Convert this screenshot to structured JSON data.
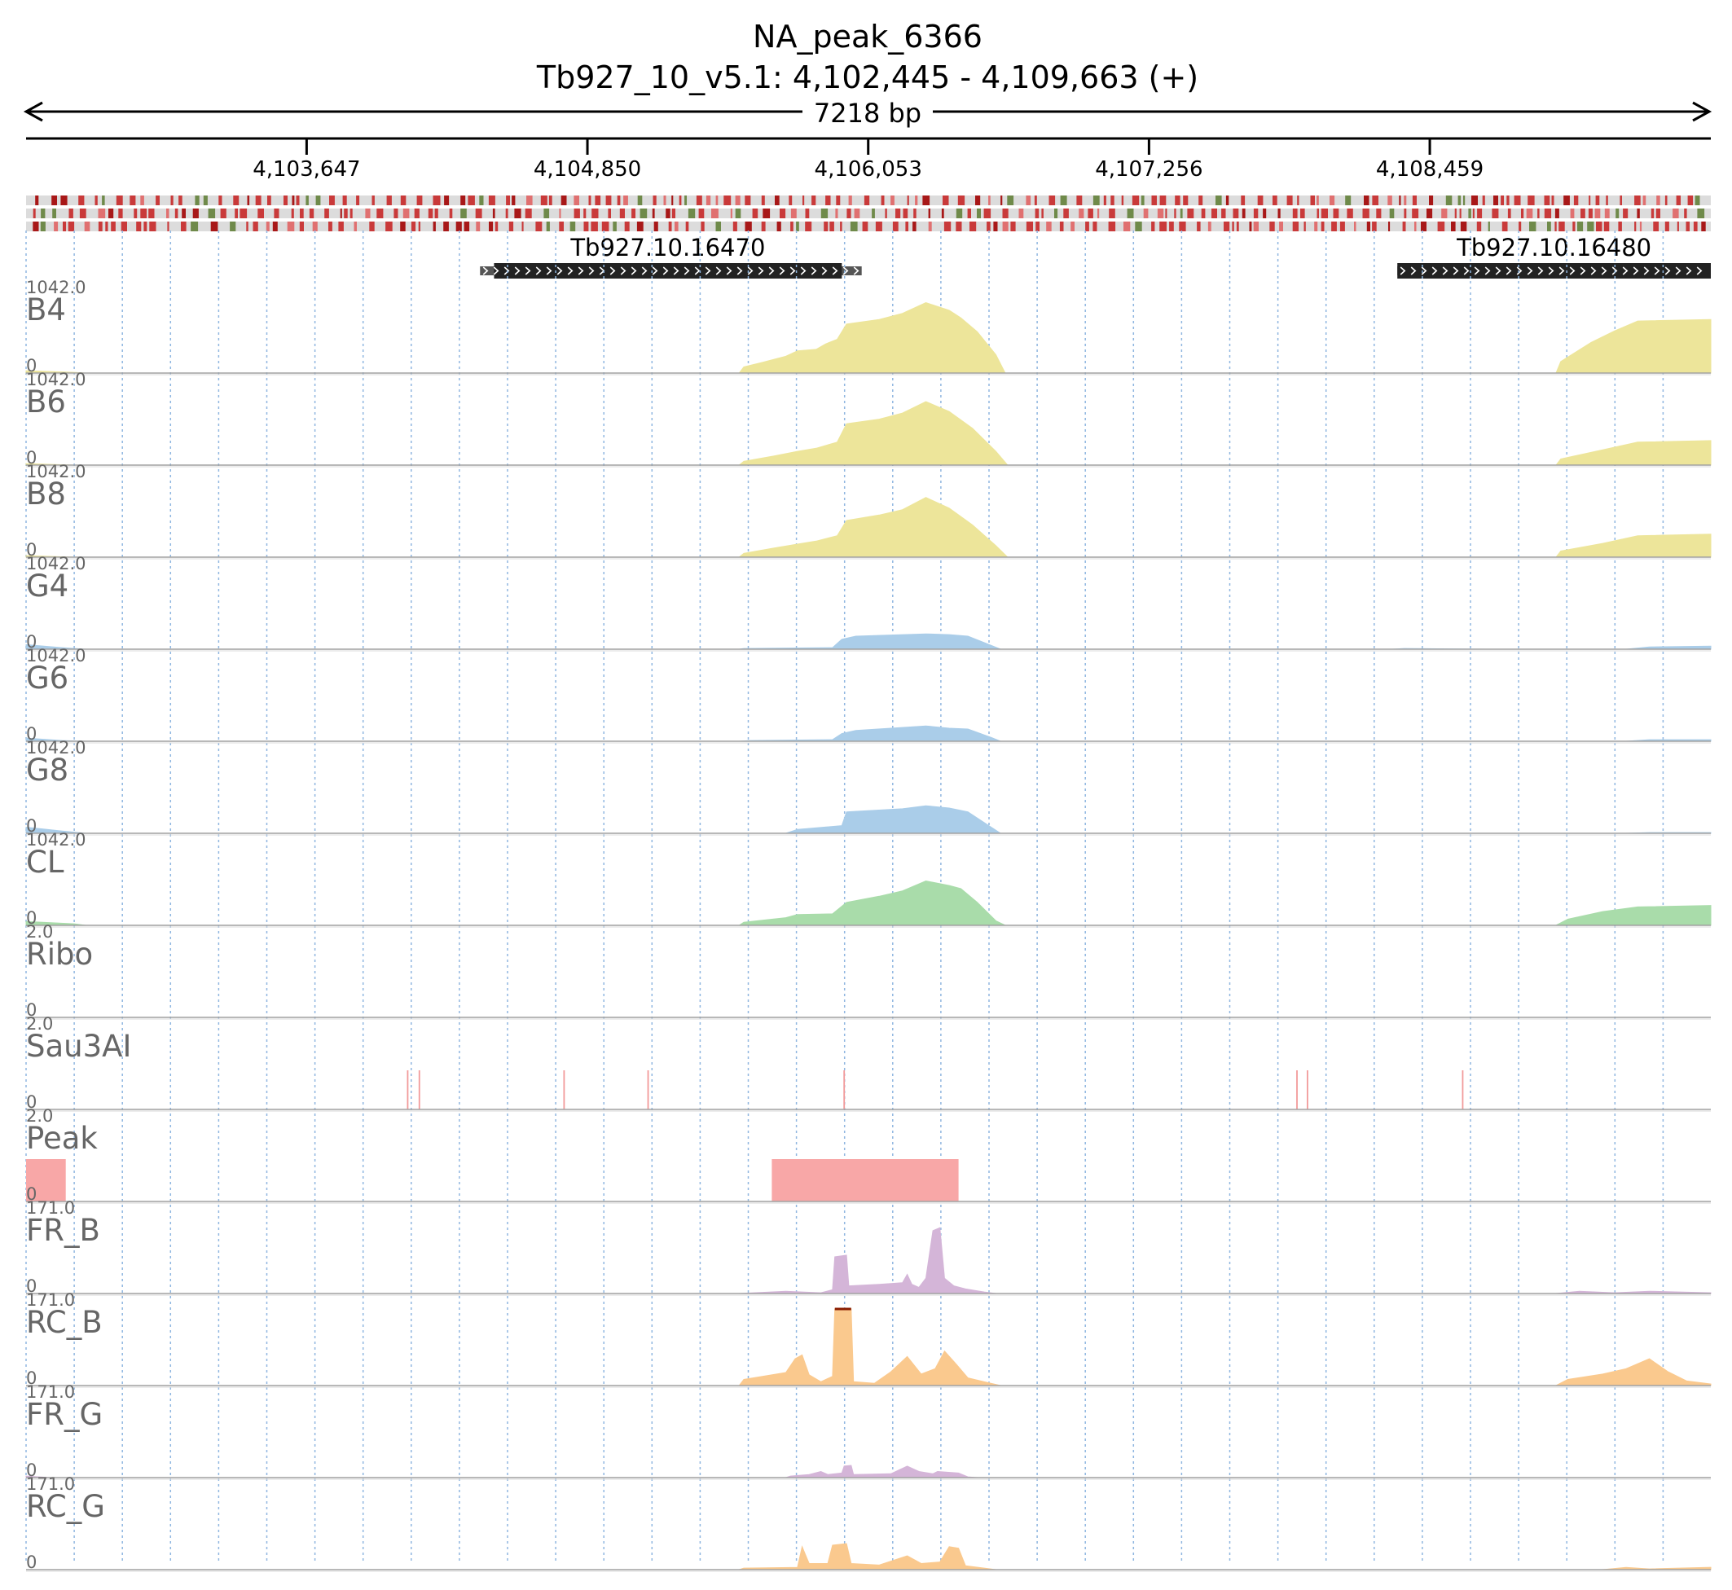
{
  "header": {
    "title": "NA_peak_6366",
    "locus": "Tb927_10_v5.1: 4,102,445 - 4,109,663 (+)",
    "span": "7218 bp"
  },
  "region": {
    "start": 4102445,
    "end": 4109663
  },
  "ruler": {
    "ticks": [
      {
        "pos": 4103647,
        "label": "4,103,647"
      },
      {
        "pos": 4104850,
        "label": "4,104,850"
      },
      {
        "pos": 4106053,
        "label": "4,106,053"
      },
      {
        "pos": 4107256,
        "label": "4,107,256"
      },
      {
        "pos": 4108459,
        "label": "4,108,459"
      }
    ]
  },
  "genes": [
    {
      "name": "Tb927.10.16470",
      "start": 4104450,
      "end": 4105940,
      "utr_start": 4104390,
      "utr_end": 4106025,
      "strand": "+"
    },
    {
      "name": "Tb927.10.16480",
      "start": 4108320,
      "end": 4109663,
      "utr_start": 4108320,
      "utr_end": 4109663,
      "strand": "+"
    }
  ],
  "colors": {
    "yellow": "#ede59a",
    "blue": "#aacde9",
    "green": "#a9dcaa",
    "pink": "#f8a7a7",
    "purple": "#d4b5d8",
    "orange": "#fac98e",
    "red_line": "#f29a9a",
    "grid": "#8fb6e0",
    "label": "#666666"
  },
  "tracks": [
    {
      "name": "B4",
      "max": "1042.0",
      "min": "0",
      "type": "coverage",
      "color_key": "yellow",
      "profile": [
        [
          4102445,
          0.03
        ],
        [
          4102650,
          0.01
        ],
        [
          4102700,
          0
        ],
        [
          4105500,
          0
        ],
        [
          4105520,
          0.08
        ],
        [
          4105600,
          0.14
        ],
        [
          4105700,
          0.22
        ],
        [
          4105750,
          0.29
        ],
        [
          4105830,
          0.31
        ],
        [
          4105870,
          0.38
        ],
        [
          4105920,
          0.44
        ],
        [
          4105960,
          0.64
        ],
        [
          4106100,
          0.7
        ],
        [
          4106200,
          0.78
        ],
        [
          4106300,
          0.92
        ],
        [
          4106400,
          0.82
        ],
        [
          4106450,
          0.72
        ],
        [
          4106520,
          0.54
        ],
        [
          4106600,
          0.24
        ],
        [
          4106640,
          0
        ],
        [
          4109000,
          0
        ],
        [
          4109020,
          0.15
        ],
        [
          4109150,
          0.4
        ],
        [
          4109250,
          0.55
        ],
        [
          4109350,
          0.68
        ],
        [
          4109663,
          0.7
        ]
      ]
    },
    {
      "name": "B6",
      "max": "1042.0",
      "min": "0",
      "type": "coverage",
      "color_key": "yellow",
      "profile": [
        [
          4102445,
          0.02
        ],
        [
          4102650,
          0
        ],
        [
          4105500,
          0
        ],
        [
          4105520,
          0.05
        ],
        [
          4105650,
          0.12
        ],
        [
          4105750,
          0.18
        ],
        [
          4105830,
          0.22
        ],
        [
          4105920,
          0.3
        ],
        [
          4105960,
          0.54
        ],
        [
          4106100,
          0.6
        ],
        [
          4106200,
          0.68
        ],
        [
          4106300,
          0.83
        ],
        [
          4106400,
          0.7
        ],
        [
          4106500,
          0.48
        ],
        [
          4106600,
          0.18
        ],
        [
          4106650,
          0
        ],
        [
          4109000,
          0
        ],
        [
          4109020,
          0.08
        ],
        [
          4109200,
          0.2
        ],
        [
          4109350,
          0.3
        ],
        [
          4109663,
          0.32
        ]
      ]
    },
    {
      "name": "B8",
      "max": "1042.0",
      "min": "0",
      "type": "coverage",
      "color_key": "yellow",
      "profile": [
        [
          4102445,
          0.02
        ],
        [
          4102650,
          0
        ],
        [
          4105500,
          0
        ],
        [
          4105520,
          0.05
        ],
        [
          4105650,
          0.12
        ],
        [
          4105750,
          0.17
        ],
        [
          4105830,
          0.21
        ],
        [
          4105920,
          0.28
        ],
        [
          4105960,
          0.48
        ],
        [
          4106100,
          0.55
        ],
        [
          4106200,
          0.62
        ],
        [
          4106300,
          0.78
        ],
        [
          4106400,
          0.64
        ],
        [
          4106500,
          0.42
        ],
        [
          4106600,
          0.15
        ],
        [
          4106650,
          0
        ],
        [
          4109000,
          0
        ],
        [
          4109020,
          0.08
        ],
        [
          4109200,
          0.18
        ],
        [
          4109350,
          0.28
        ],
        [
          4109663,
          0.3
        ]
      ]
    },
    {
      "name": "G4",
      "max": "1042.0",
      "min": "0",
      "type": "coverage",
      "color_key": "blue",
      "profile": [
        [
          4102445,
          0.06
        ],
        [
          4102600,
          0.02
        ],
        [
          4102700,
          0
        ],
        [
          4105500,
          0
        ],
        [
          4105520,
          0.01
        ],
        [
          4105900,
          0.02
        ],
        [
          4105940,
          0.13
        ],
        [
          4106000,
          0.17
        ],
        [
          4106300,
          0.2
        ],
        [
          4106400,
          0.19
        ],
        [
          4106480,
          0.17
        ],
        [
          4106580,
          0.05
        ],
        [
          4106620,
          0
        ],
        [
          4108300,
          0
        ],
        [
          4108350,
          0.01
        ],
        [
          4108700,
          0
        ],
        [
          4109300,
          0
        ],
        [
          4109400,
          0.03
        ],
        [
          4109663,
          0.04
        ]
      ]
    },
    {
      "name": "G6",
      "max": "1042.0",
      "min": "0",
      "type": "coverage",
      "color_key": "blue",
      "profile": [
        [
          4102445,
          0.04
        ],
        [
          4102600,
          0.01
        ],
        [
          4102700,
          0
        ],
        [
          4105500,
          0
        ],
        [
          4105550,
          0.01
        ],
        [
          4105900,
          0.02
        ],
        [
          4105940,
          0.1
        ],
        [
          4106000,
          0.14
        ],
        [
          4106300,
          0.2
        ],
        [
          4106400,
          0.17
        ],
        [
          4106480,
          0.16
        ],
        [
          4106580,
          0.05
        ],
        [
          4106620,
          0
        ],
        [
          4109300,
          0
        ],
        [
          4109400,
          0.02
        ],
        [
          4109663,
          0.02
        ]
      ]
    },
    {
      "name": "G8",
      "max": "1042.0",
      "min": "0",
      "type": "coverage",
      "color_key": "blue",
      "profile": [
        [
          4102445,
          0.08
        ],
        [
          4102600,
          0.03
        ],
        [
          4102700,
          0
        ],
        [
          4105700,
          0
        ],
        [
          4105750,
          0.05
        ],
        [
          4105940,
          0.1
        ],
        [
          4105960,
          0.28
        ],
        [
          4106200,
          0.32
        ],
        [
          4106300,
          0.36
        ],
        [
          4106400,
          0.33
        ],
        [
          4106480,
          0.28
        ],
        [
          4106580,
          0.08
        ],
        [
          4106620,
          0
        ],
        [
          4109300,
          0
        ],
        [
          4109400,
          0.01
        ],
        [
          4109663,
          0.01
        ]
      ]
    },
    {
      "name": "CL",
      "max": "1042.0",
      "min": "0",
      "type": "coverage",
      "color_key": "green",
      "profile": [
        [
          4102445,
          0.05
        ],
        [
          4102650,
          0.02
        ],
        [
          4102700,
          0
        ],
        [
          4105500,
          0
        ],
        [
          4105520,
          0.04
        ],
        [
          4105700,
          0.1
        ],
        [
          4105750,
          0.14
        ],
        [
          4105900,
          0.15
        ],
        [
          4105960,
          0.3
        ],
        [
          4106100,
          0.38
        ],
        [
          4106200,
          0.45
        ],
        [
          4106300,
          0.58
        ],
        [
          4106400,
          0.52
        ],
        [
          4106450,
          0.48
        ],
        [
          4106520,
          0.3
        ],
        [
          4106600,
          0.06
        ],
        [
          4106640,
          0
        ],
        [
          4109000,
          0
        ],
        [
          4109050,
          0.08
        ],
        [
          4109200,
          0.18
        ],
        [
          4109350,
          0.24
        ],
        [
          4109663,
          0.26
        ]
      ]
    },
    {
      "name": "Ribo",
      "max": "2.0",
      "min": "0",
      "type": "empty",
      "color_key": "grid"
    },
    {
      "name": "Sau3AI",
      "max": "2.0",
      "min": "0",
      "type": "sites",
      "color_key": "red_line",
      "sites": [
        4104080,
        4104130,
        4104750,
        4105110,
        4105950,
        4107890,
        4107935,
        4108600
      ]
    },
    {
      "name": "Peak",
      "max": "2.0",
      "min": "0",
      "type": "blocks",
      "color_key": "pink",
      "blocks": [
        [
          4102445,
          4102615
        ],
        [
          4105640,
          4106440
        ]
      ]
    },
    {
      "name": "FR_B",
      "max": "171.0",
      "min": "0",
      "type": "coverage",
      "color_key": "purple",
      "profile": [
        [
          4102445,
          0
        ],
        [
          4105500,
          0
        ],
        [
          4105700,
          0.03
        ],
        [
          4105850,
          0.01
        ],
        [
          4105900,
          0.05
        ],
        [
          4105910,
          0.48
        ],
        [
          4105960,
          0.5
        ],
        [
          4105970,
          0.1
        ],
        [
          4106100,
          0.12
        ],
        [
          4106200,
          0.14
        ],
        [
          4106220,
          0.25
        ],
        [
          4106240,
          0.12
        ],
        [
          4106270,
          0.08
        ],
        [
          4106300,
          0.2
        ],
        [
          4106330,
          0.82
        ],
        [
          4106360,
          0.86
        ],
        [
          4106380,
          0.2
        ],
        [
          4106420,
          0.1
        ],
        [
          4106470,
          0.06
        ],
        [
          4106550,
          0.02
        ],
        [
          4106600,
          0
        ],
        [
          4109000,
          0
        ],
        [
          4109100,
          0.03
        ],
        [
          4109250,
          0.01
        ],
        [
          4109400,
          0.03
        ],
        [
          4109663,
          0.01
        ]
      ]
    },
    {
      "name": "RC_B",
      "max": "171.0",
      "min": "0",
      "type": "coverage",
      "color_key": "orange",
      "clipped": true,
      "profile": [
        [
          4102445,
          0
        ],
        [
          4105500,
          0
        ],
        [
          4105520,
          0.08
        ],
        [
          4105600,
          0.12
        ],
        [
          4105700,
          0.17
        ],
        [
          4105740,
          0.35
        ],
        [
          4105770,
          0.4
        ],
        [
          4105800,
          0.14
        ],
        [
          4105850,
          0.05
        ],
        [
          4105900,
          0.12
        ],
        [
          4105910,
          1.0
        ],
        [
          4105980,
          1.0
        ],
        [
          4105990,
          0.05
        ],
        [
          4106080,
          0.03
        ],
        [
          4106150,
          0.18
        ],
        [
          4106220,
          0.38
        ],
        [
          4106280,
          0.15
        ],
        [
          4106340,
          0.22
        ],
        [
          4106380,
          0.45
        ],
        [
          4106430,
          0.28
        ],
        [
          4106480,
          0.1
        ],
        [
          4106550,
          0.05
        ],
        [
          4106620,
          0
        ],
        [
          4109000,
          0
        ],
        [
          4109050,
          0.08
        ],
        [
          4109200,
          0.15
        ],
        [
          4109300,
          0.22
        ],
        [
          4109400,
          0.35
        ],
        [
          4109480,
          0.18
        ],
        [
          4109560,
          0.06
        ],
        [
          4109663,
          0.02
        ]
      ]
    },
    {
      "name": "FR_G",
      "max": "171.0",
      "min": "0",
      "type": "coverage",
      "color_key": "purple",
      "profile": [
        [
          4102445,
          0.02
        ],
        [
          4102550,
          0
        ],
        [
          4105700,
          0
        ],
        [
          4105720,
          0.02
        ],
        [
          4105800,
          0.04
        ],
        [
          4105850,
          0.08
        ],
        [
          4105880,
          0.04
        ],
        [
          4105940,
          0.06
        ],
        [
          4105950,
          0.15
        ],
        [
          4105980,
          0.16
        ],
        [
          4105990,
          0.04
        ],
        [
          4106150,
          0.05
        ],
        [
          4106220,
          0.15
        ],
        [
          4106270,
          0.08
        ],
        [
          4106330,
          0.05
        ],
        [
          4106350,
          0.08
        ],
        [
          4106440,
          0.06
        ],
        [
          4106480,
          0.01
        ],
        [
          4106520,
          0
        ]
      ]
    },
    {
      "name": "RC_G",
      "max": "171.0",
      "min": "0",
      "type": "coverage",
      "color_key": "orange",
      "profile": [
        [
          4102445,
          0
        ],
        [
          4105500,
          0
        ],
        [
          4105520,
          0.02
        ],
        [
          4105750,
          0.03
        ],
        [
          4105770,
          0.3
        ],
        [
          4105800,
          0.08
        ],
        [
          4105880,
          0.08
        ],
        [
          4105900,
          0.32
        ],
        [
          4105960,
          0.34
        ],
        [
          4105980,
          0.08
        ],
        [
          4106100,
          0.06
        ],
        [
          4106220,
          0.18
        ],
        [
          4106280,
          0.08
        ],
        [
          4106360,
          0.1
        ],
        [
          4106400,
          0.3
        ],
        [
          4106440,
          0.28
        ],
        [
          4106470,
          0.05
        ],
        [
          4106550,
          0.02
        ],
        [
          4106600,
          0
        ],
        [
          4109200,
          0
        ],
        [
          4109300,
          0.03
        ],
        [
          4109400,
          0.01
        ],
        [
          4109663,
          0.03
        ]
      ]
    }
  ]
}
